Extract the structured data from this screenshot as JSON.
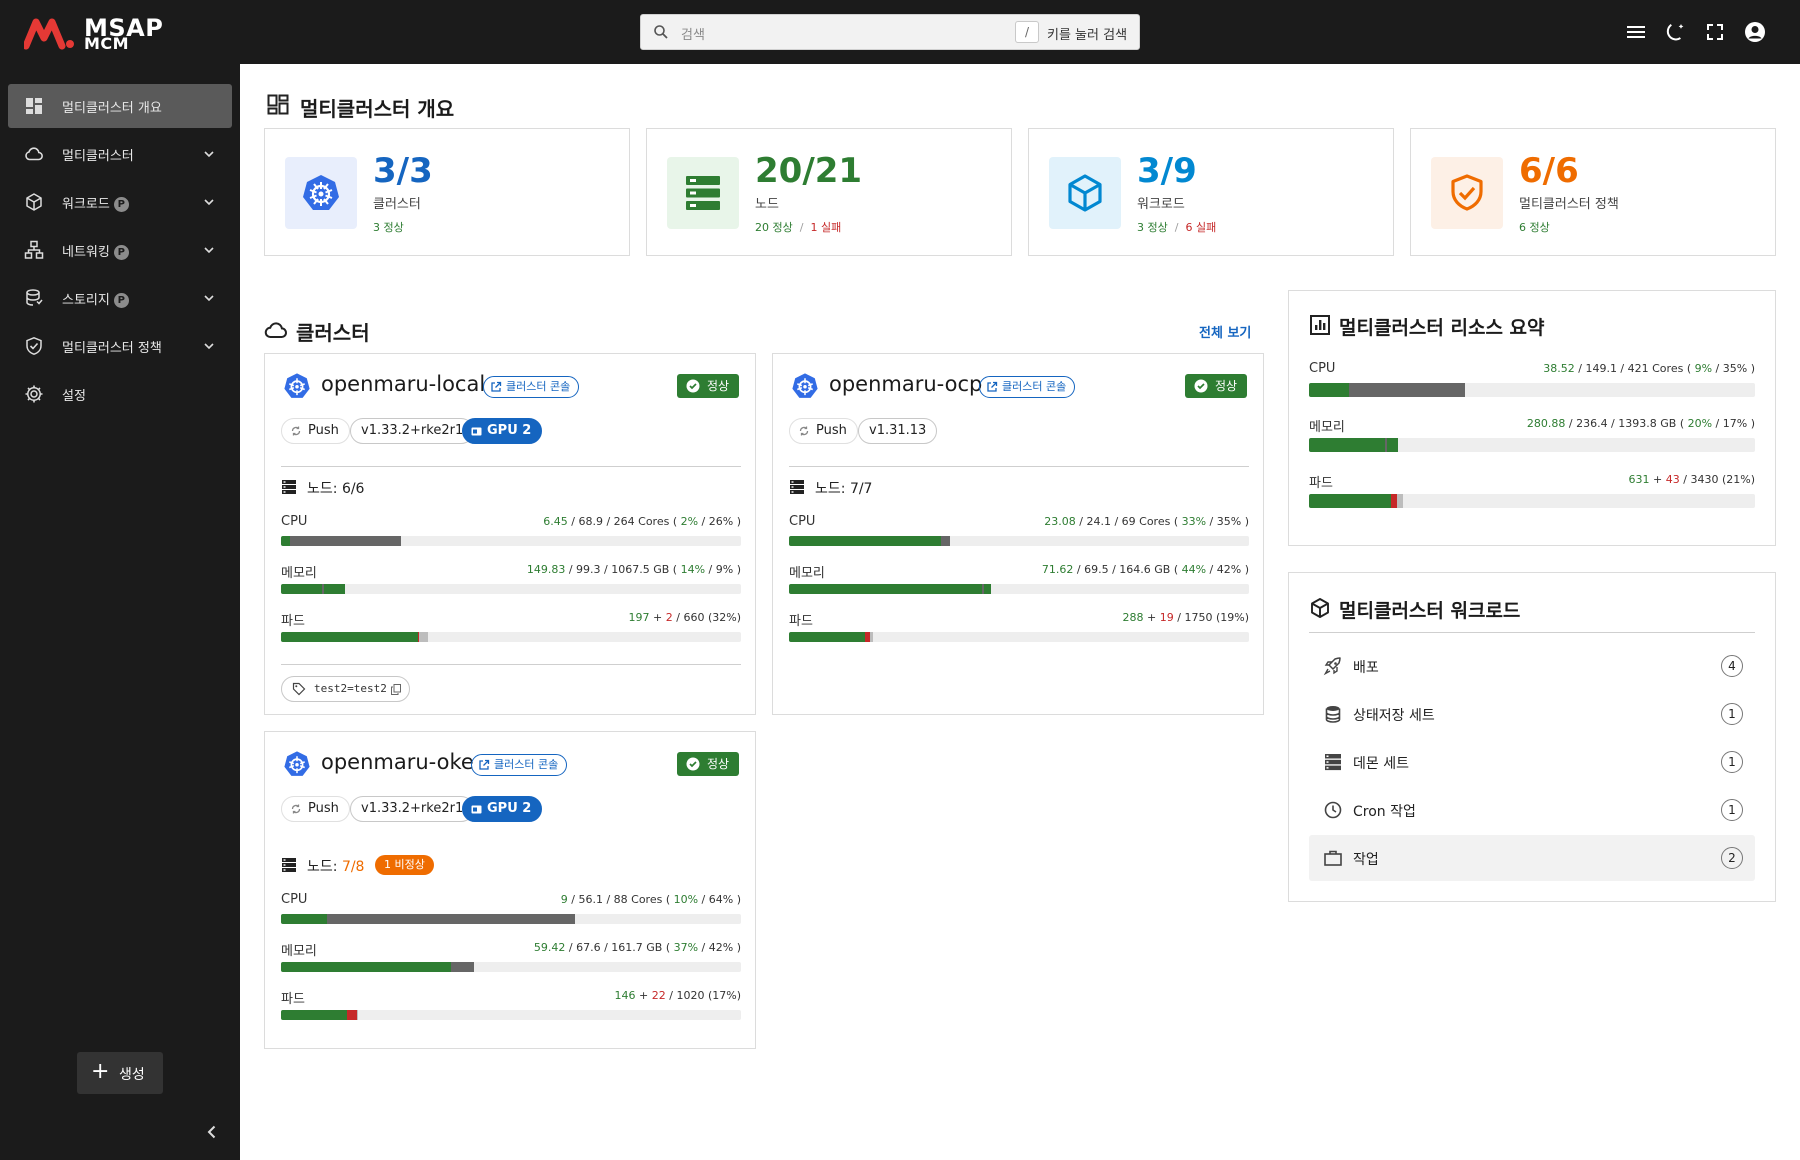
{
  "brand": {
    "line1": "MSAP",
    "line2": "MCM"
  },
  "search": {
    "placeholder": "검색",
    "key": "/",
    "hint": "키를 눌러 검색"
  },
  "sidebar": {
    "items": [
      {
        "label": "멀티클러스터 개요"
      },
      {
        "label": "멀티클러스터"
      },
      {
        "label": "워크로드",
        "badge": "P"
      },
      {
        "label": "네트워킹",
        "badge": "P"
      },
      {
        "label": "스토리지",
        "badge": "P"
      },
      {
        "label": "멀티클러스터 정책"
      },
      {
        "label": "설정"
      }
    ],
    "create_label": "생성"
  },
  "overview": {
    "title": "멀티클러스터 개요",
    "cards": [
      {
        "value": "3/3",
        "label": "클러스터",
        "ok": "3 정상",
        "fail": ""
      },
      {
        "value": "20/21",
        "label": "노드",
        "ok": "20 정상",
        "sep": "/",
        "fail": "1 실패"
      },
      {
        "value": "3/9",
        "label": "워크로드",
        "ok": "3 정상",
        "sep": "/",
        "fail": "6 실패"
      },
      {
        "value": "6/6",
        "label": "멀티클러스터 정책",
        "ok": "6 정상",
        "fail": ""
      }
    ]
  },
  "clusters": {
    "title": "클러스터",
    "view_all": "전체 보기",
    "console_label": "클러스터 콘솔",
    "status_label": "정상",
    "items": [
      {
        "name": "openmaru-local",
        "push": "Push",
        "version": "v1.33.2+rke2r1",
        "gpu": "GPU 2",
        "nodes_label": "노드:",
        "nodes": "6/6",
        "cpu": {
          "label": "CPU",
          "a": "6.45",
          "b": " / 68.9 / 264 Cores ( ",
          "p1": "2%",
          "mid": " / 26% )",
          "used": 0.02,
          "req": 0.26
        },
        "mem": {
          "label": "메모리",
          "a": "149.83",
          "b": " / 99.3 / 1067.5 GB ( ",
          "p1": "14%",
          "mid": " / 9% )",
          "used": 0.14,
          "req": 0.09
        },
        "pods": {
          "label": "파드",
          "a": "197",
          "plus": " + ",
          "c": "2",
          "rest": " / 660 (32%)",
          "ok": 0.298,
          "fail": 0.003,
          "other": 0.019
        },
        "tag": "test2=test2"
      },
      {
        "name": "openmaru-ocp",
        "push": "Push",
        "version": "v1.31.13",
        "nodes_label": "노드:",
        "nodes": "7/7",
        "cpu": {
          "label": "CPU",
          "a": "23.08",
          "b": " / 24.1 / 69 Cores ( ",
          "p1": "33%",
          "mid": " / 35% )",
          "used": 0.33,
          "req": 0.35
        },
        "mem": {
          "label": "메모리",
          "a": "71.62",
          "b": " / 69.5 / 164.6 GB ( ",
          "p1": "44%",
          "mid": " / 42% )",
          "used": 0.44,
          "req": 0.42
        },
        "pods": {
          "label": "파드",
          "a": "288",
          "plus": " + ",
          "c": "19",
          "rest": " / 1750 (19%)",
          "ok": 0.165,
          "fail": 0.011,
          "other": 0.006
        }
      },
      {
        "name": "openmaru-oke",
        "push": "Push",
        "version": "v1.33.2+rke2r1",
        "gpu": "GPU 2",
        "nodes_label": "노드:",
        "nodes": "7/8",
        "nodes_warn": "1 비정상",
        "cpu": {
          "label": "CPU",
          "a": "9",
          "b": " / 56.1 / 88 Cores ( ",
          "p1": "10%",
          "mid": " / 64% )",
          "used": 0.1,
          "req": 0.64
        },
        "mem": {
          "label": "메모리",
          "a": "59.42",
          "b": " / 67.6 / 161.7 GB ( ",
          "p1": "37%",
          "mid": " / 42% )",
          "used": 0.37,
          "req": 0.42
        },
        "pods": {
          "label": "파드",
          "a": "146",
          "plus": " + ",
          "c": "22",
          "rest": " / 1020 (17%)",
          "ok": 0.143,
          "fail": 0.022,
          "other": 0.003
        }
      }
    ]
  },
  "resource_summary": {
    "title": "멀티클러스터 리소스 요약",
    "cpu": {
      "label": "CPU",
      "a": "38.52",
      "b": " / 149.1 / 421 Cores ( ",
      "p1": "9%",
      "mid": " / 35% )",
      "used": 0.09,
      "req": 0.35
    },
    "mem": {
      "label": "메모리",
      "a": "280.88",
      "b": " / 236.4 / 1393.8 GB ( ",
      "p1": "20%",
      "mid": " / 17% )",
      "used": 0.2,
      "req": 0.17
    },
    "pods": {
      "label": "파드",
      "a": "631",
      "plus": " + ",
      "c": "43",
      "rest": " / 3430 (21%)",
      "ok": 0.184,
      "fail": 0.013,
      "other": 0.013
    }
  },
  "workloads": {
    "title": "멀티클러스터 워크로드",
    "items": [
      {
        "label": "배포",
        "count": "4"
      },
      {
        "label": "상태저장 세트",
        "count": "1"
      },
      {
        "label": "데몬 세트",
        "count": "1"
      },
      {
        "label": "Cron 작업",
        "count": "1"
      },
      {
        "label": "작업",
        "count": "2"
      }
    ]
  },
  "colors": {
    "green": "#2e7d32",
    "red": "#c62828",
    "gray_bar": "#666666",
    "blue": "#1565c0",
    "orange": "#ef6c00",
    "bg_dark": "#1b1b1b"
  }
}
